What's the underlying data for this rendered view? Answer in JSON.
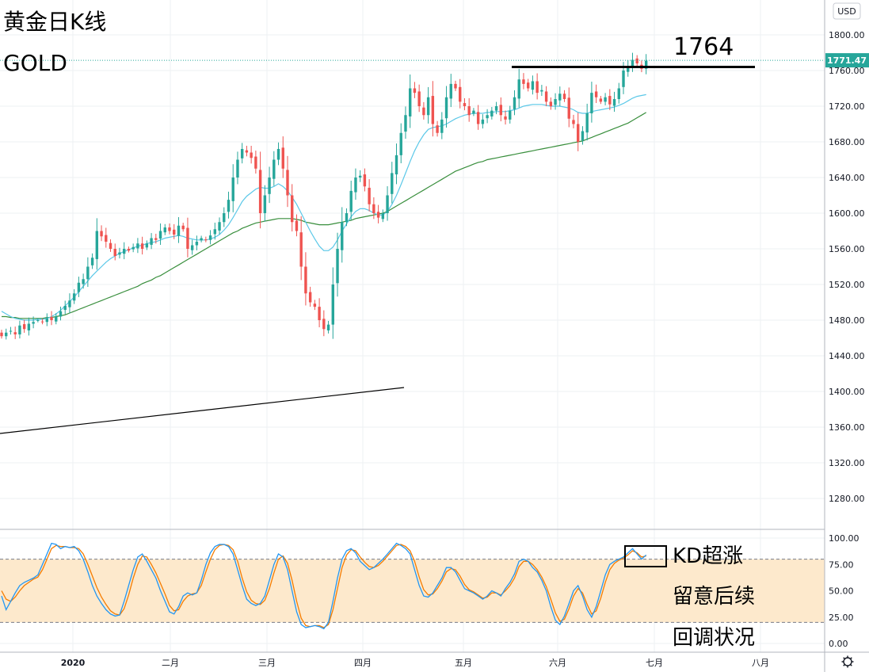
{
  "header": {
    "title": "黄金日K线",
    "symbol": "GOLD"
  },
  "axis": {
    "currency": "USD",
    "settings_icon": "gear-icon"
  },
  "price_label": {
    "value": "1771.47",
    "color": "#26a69a"
  },
  "annotations": {
    "resistance_label": "1764",
    "kd_lines": [
      "KD超涨",
      "留意后续",
      "回调状况"
    ]
  },
  "chart_data": [
    {
      "type": "candlestick",
      "title": "黄金日K线",
      "ylim": [
        1240,
        1830
      ],
      "y_ticks": [
        1800,
        1760,
        1720,
        1680,
        1640,
        1600,
        1560,
        1520,
        1480,
        1440,
        1400,
        1360,
        1320,
        1280
      ],
      "y_tick_labels": [
        "1800.00",
        "1760.00",
        "1720.00",
        "1680.00",
        "1640.00",
        "1600.00",
        "1560.00",
        "1520.00",
        "1480.00",
        "1440.00",
        "1400.00",
        "1360.00",
        "1320.00",
        "1280.00"
      ],
      "x_tick_labels": [
        "2020",
        "二月",
        "三月",
        "四月",
        "五月",
        "六月",
        "七月",
        "八月"
      ],
      "colors": {
        "up": "#26a69a",
        "down": "#ef5350",
        "ma_short": "#5bc8e8",
        "ma_long": "#388e3c"
      },
      "last_price": 1771.47,
      "resistance": 1764,
      "close": [
        1462,
        1466,
        1468,
        1464,
        1474,
        1470,
        1476,
        1478,
        1480,
        1478,
        1482,
        1480,
        1484,
        1490,
        1496,
        1502,
        1510,
        1522,
        1526,
        1540,
        1550,
        1580,
        1574,
        1568,
        1560,
        1552,
        1556,
        1560,
        1558,
        1562,
        1566,
        1560,
        1566,
        1572,
        1570,
        1580,
        1584,
        1580,
        1576,
        1586,
        1582,
        1560,
        1564,
        1568,
        1572,
        1570,
        1575,
        1582,
        1590,
        1600,
        1615,
        1640,
        1660,
        1672,
        1668,
        1662,
        1650,
        1600,
        1620,
        1640,
        1660,
        1672,
        1650,
        1620,
        1590,
        1580,
        1540,
        1510,
        1500,
        1495,
        1480,
        1470,
        1475,
        1520,
        1560,
        1590,
        1600,
        1625,
        1640,
        1642,
        1630,
        1610,
        1600,
        1595,
        1600,
        1620,
        1645,
        1665,
        1690,
        1710,
        1740,
        1735,
        1720,
        1710,
        1730,
        1700,
        1690,
        1705,
        1730,
        1745,
        1740,
        1725,
        1720,
        1710,
        1715,
        1700,
        1705,
        1710,
        1715,
        1720,
        1710,
        1705,
        1715,
        1730,
        1750,
        1745,
        1740,
        1748,
        1735,
        1738,
        1725,
        1720,
        1728,
        1734,
        1728,
        1706,
        1700,
        1680,
        1692,
        1712,
        1735,
        1730,
        1725,
        1730,
        1722,
        1728,
        1740,
        1760,
        1765,
        1772,
        1768,
        1762,
        1771
      ],
      "ma_short": [
        1490,
        1487,
        1484,
        1482,
        1481,
        1480,
        1480,
        1480,
        1481,
        1481,
        1482,
        1484,
        1487,
        1491,
        1496,
        1501,
        1506,
        1512,
        1518,
        1524,
        1530,
        1535,
        1540,
        1545,
        1549,
        1552,
        1555,
        1557,
        1559,
        1561,
        1563,
        1564,
        1566,
        1567,
        1568,
        1570,
        1572,
        1573,
        1574,
        1575,
        1574,
        1572,
        1571,
        1570,
        1570,
        1570,
        1571,
        1573,
        1576,
        1581,
        1587,
        1595,
        1604,
        1613,
        1619,
        1623,
        1627,
        1629,
        1628,
        1628,
        1630,
        1633,
        1630,
        1625,
        1618,
        1610,
        1600,
        1590,
        1580,
        1571,
        1563,
        1558,
        1558,
        1562,
        1570,
        1580,
        1588,
        1596,
        1602,
        1605,
        1605,
        1603,
        1600,
        1598,
        1598,
        1602,
        1610,
        1620,
        1632,
        1645,
        1658,
        1670,
        1680,
        1688,
        1694,
        1696,
        1697,
        1698,
        1700,
        1703,
        1706,
        1708,
        1710,
        1711,
        1712,
        1712,
        1712,
        1713,
        1713,
        1714,
        1714,
        1714,
        1715,
        1716,
        1718,
        1720,
        1721,
        1722,
        1722,
        1722,
        1721,
        1720,
        1720,
        1720,
        1719,
        1718,
        1716,
        1713,
        1712,
        1712,
        1714,
        1715,
        1716,
        1717,
        1718,
        1719,
        1721,
        1723,
        1726,
        1729,
        1731,
        1732,
        1733
      ],
      "ma_long": [
        1484,
        1484,
        1483,
        1483,
        1482,
        1482,
        1482,
        1482,
        1482,
        1482,
        1483,
        1483,
        1484,
        1485,
        1486,
        1488,
        1490,
        1492,
        1494,
        1496,
        1498,
        1500,
        1502,
        1504,
        1506,
        1508,
        1510,
        1512,
        1514,
        1516,
        1518,
        1521,
        1523,
        1525,
        1528,
        1530,
        1533,
        1536,
        1539,
        1542,
        1545,
        1548,
        1551,
        1554,
        1557,
        1560,
        1563,
        1566,
        1569,
        1572,
        1575,
        1578,
        1580,
        1583,
        1585,
        1587,
        1589,
        1590,
        1591,
        1592,
        1593,
        1594,
        1594,
        1594,
        1594,
        1593,
        1592,
        1590,
        1589,
        1588,
        1587,
        1587,
        1587,
        1588,
        1589,
        1590,
        1591,
        1592,
        1594,
        1595,
        1596,
        1597,
        1598,
        1599,
        1600,
        1602,
        1605,
        1608,
        1611,
        1614,
        1617,
        1620,
        1623,
        1626,
        1629,
        1632,
        1635,
        1638,
        1641,
        1644,
        1647,
        1649,
        1651,
        1653,
        1655,
        1657,
        1658,
        1660,
        1661,
        1662,
        1663,
        1664,
        1665,
        1666,
        1667,
        1668,
        1669,
        1670,
        1671,
        1672,
        1673,
        1674,
        1675,
        1676,
        1677,
        1678,
        1679,
        1680,
        1681,
        1683,
        1685,
        1687,
        1689,
        1691,
        1693,
        1695,
        1697,
        1699,
        1701,
        1704,
        1707,
        1710,
        1713
      ]
    },
    {
      "type": "line",
      "title": "",
      "ylim": [
        -5,
        105
      ],
      "y_ticks": [
        100,
        75,
        50,
        25,
        0
      ],
      "y_tick_labels": [
        "100.00",
        "75.00",
        "50.00",
        "25.00",
        "0.00"
      ],
      "overbought": 80,
      "oversold": 20,
      "colors": {
        "k": "#2196f3",
        "d": "#f57c00",
        "band": "#fde9cc"
      },
      "series": [
        {
          "values": [
            45,
            32,
            40,
            48,
            55,
            58,
            60,
            62,
            65,
            75,
            85,
            95,
            94,
            90,
            92,
            91,
            92,
            88,
            80,
            68,
            55,
            45,
            38,
            32,
            28,
            26,
            27,
            40,
            55,
            70,
            82,
            85,
            78,
            70,
            62,
            50,
            40,
            30,
            28,
            35,
            45,
            48,
            46,
            48,
            60,
            75,
            86,
            92,
            94,
            94,
            92,
            85,
            70,
            55,
            42,
            38,
            36,
            38,
            45,
            60,
            75,
            85,
            82,
            70,
            50,
            30,
            18,
            15,
            16,
            17,
            16,
            14,
            20,
            40,
            62,
            80,
            88,
            90,
            86,
            78,
            74,
            70,
            72,
            76,
            80,
            85,
            90,
            95,
            93,
            90,
            85,
            70,
            55,
            45,
            44,
            48,
            55,
            62,
            72,
            72,
            68,
            60,
            52,
            50,
            48,
            45,
            42,
            45,
            50,
            48,
            45,
            52,
            58,
            66,
            78,
            80,
            78,
            72,
            68,
            60,
            50,
            35,
            22,
            18,
            26,
            38,
            50,
            55,
            45,
            32,
            25,
            35,
            50,
            65,
            75,
            78,
            80,
            82,
            86,
            90,
            85,
            80,
            84
          ]
        },
        {
          "values": [
            50,
            42,
            40,
            44,
            50,
            55,
            58,
            61,
            63,
            70,
            80,
            90,
            93,
            92,
            92,
            91,
            91,
            90,
            85,
            75,
            64,
            53,
            44,
            37,
            31,
            28,
            27,
            33,
            46,
            62,
            75,
            83,
            82,
            75,
            67,
            57,
            47,
            36,
            31,
            32,
            40,
            45,
            47,
            48,
            55,
            68,
            80,
            89,
            93,
            94,
            93,
            89,
            78,
            62,
            49,
            41,
            38,
            37,
            41,
            52,
            67,
            80,
            83,
            76,
            60,
            40,
            24,
            17,
            16,
            17,
            17,
            15,
            18,
            32,
            52,
            72,
            84,
            89,
            88,
            82,
            77,
            73,
            72,
            74,
            78,
            83,
            88,
            93,
            94,
            92,
            88,
            78,
            63,
            51,
            46,
            47,
            52,
            59,
            68,
            71,
            70,
            64,
            56,
            51,
            49,
            46,
            43,
            44,
            48,
            48,
            46,
            50,
            55,
            62,
            73,
            78,
            78,
            75,
            70,
            63,
            54,
            42,
            29,
            21,
            23,
            33,
            45,
            52,
            48,
            37,
            28,
            31,
            43,
            58,
            70,
            76,
            79,
            81,
            84,
            88,
            86,
            82,
            83
          ]
        }
      ]
    }
  ]
}
